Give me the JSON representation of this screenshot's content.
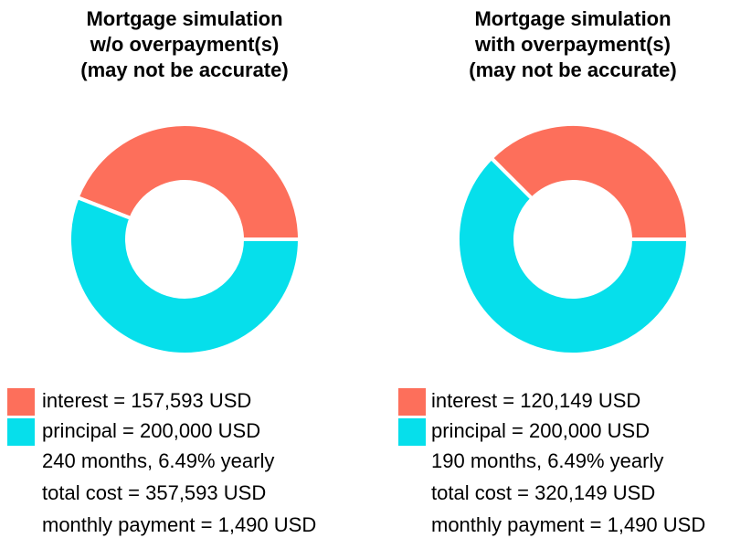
{
  "chart_data": [
    {
      "type": "donut",
      "title": [
        "Mortgage simulation",
        "w/o overpayment(s)",
        "(may not be accurate)"
      ],
      "categories": [
        "interest",
        "principal"
      ],
      "values": [
        157593,
        200000
      ],
      "value_labels": [
        "interest = 157,593 USD",
        "principal = 200,000 USD"
      ],
      "colors": [
        "#fd6f5b",
        "#06dfeb"
      ],
      "notes": [
        "240 months, 6.49% yearly",
        "total cost = 357,593 USD",
        "monthly payment = 1,490 USD"
      ]
    },
    {
      "type": "donut",
      "title": [
        "Mortgage simulation",
        "with overpayment(s)",
        "(may not be accurate)"
      ],
      "categories": [
        "interest",
        "principal"
      ],
      "values": [
        120149,
        200000
      ],
      "value_labels": [
        "interest = 120,149 USD",
        "principal = 200,000 USD"
      ],
      "colors": [
        "#fd6f5b",
        "#06dfeb"
      ],
      "notes": [
        "190 months, 6.49% yearly",
        "total cost = 320,149 USD",
        "monthly payment = 1,490 USD"
      ]
    }
  ]
}
